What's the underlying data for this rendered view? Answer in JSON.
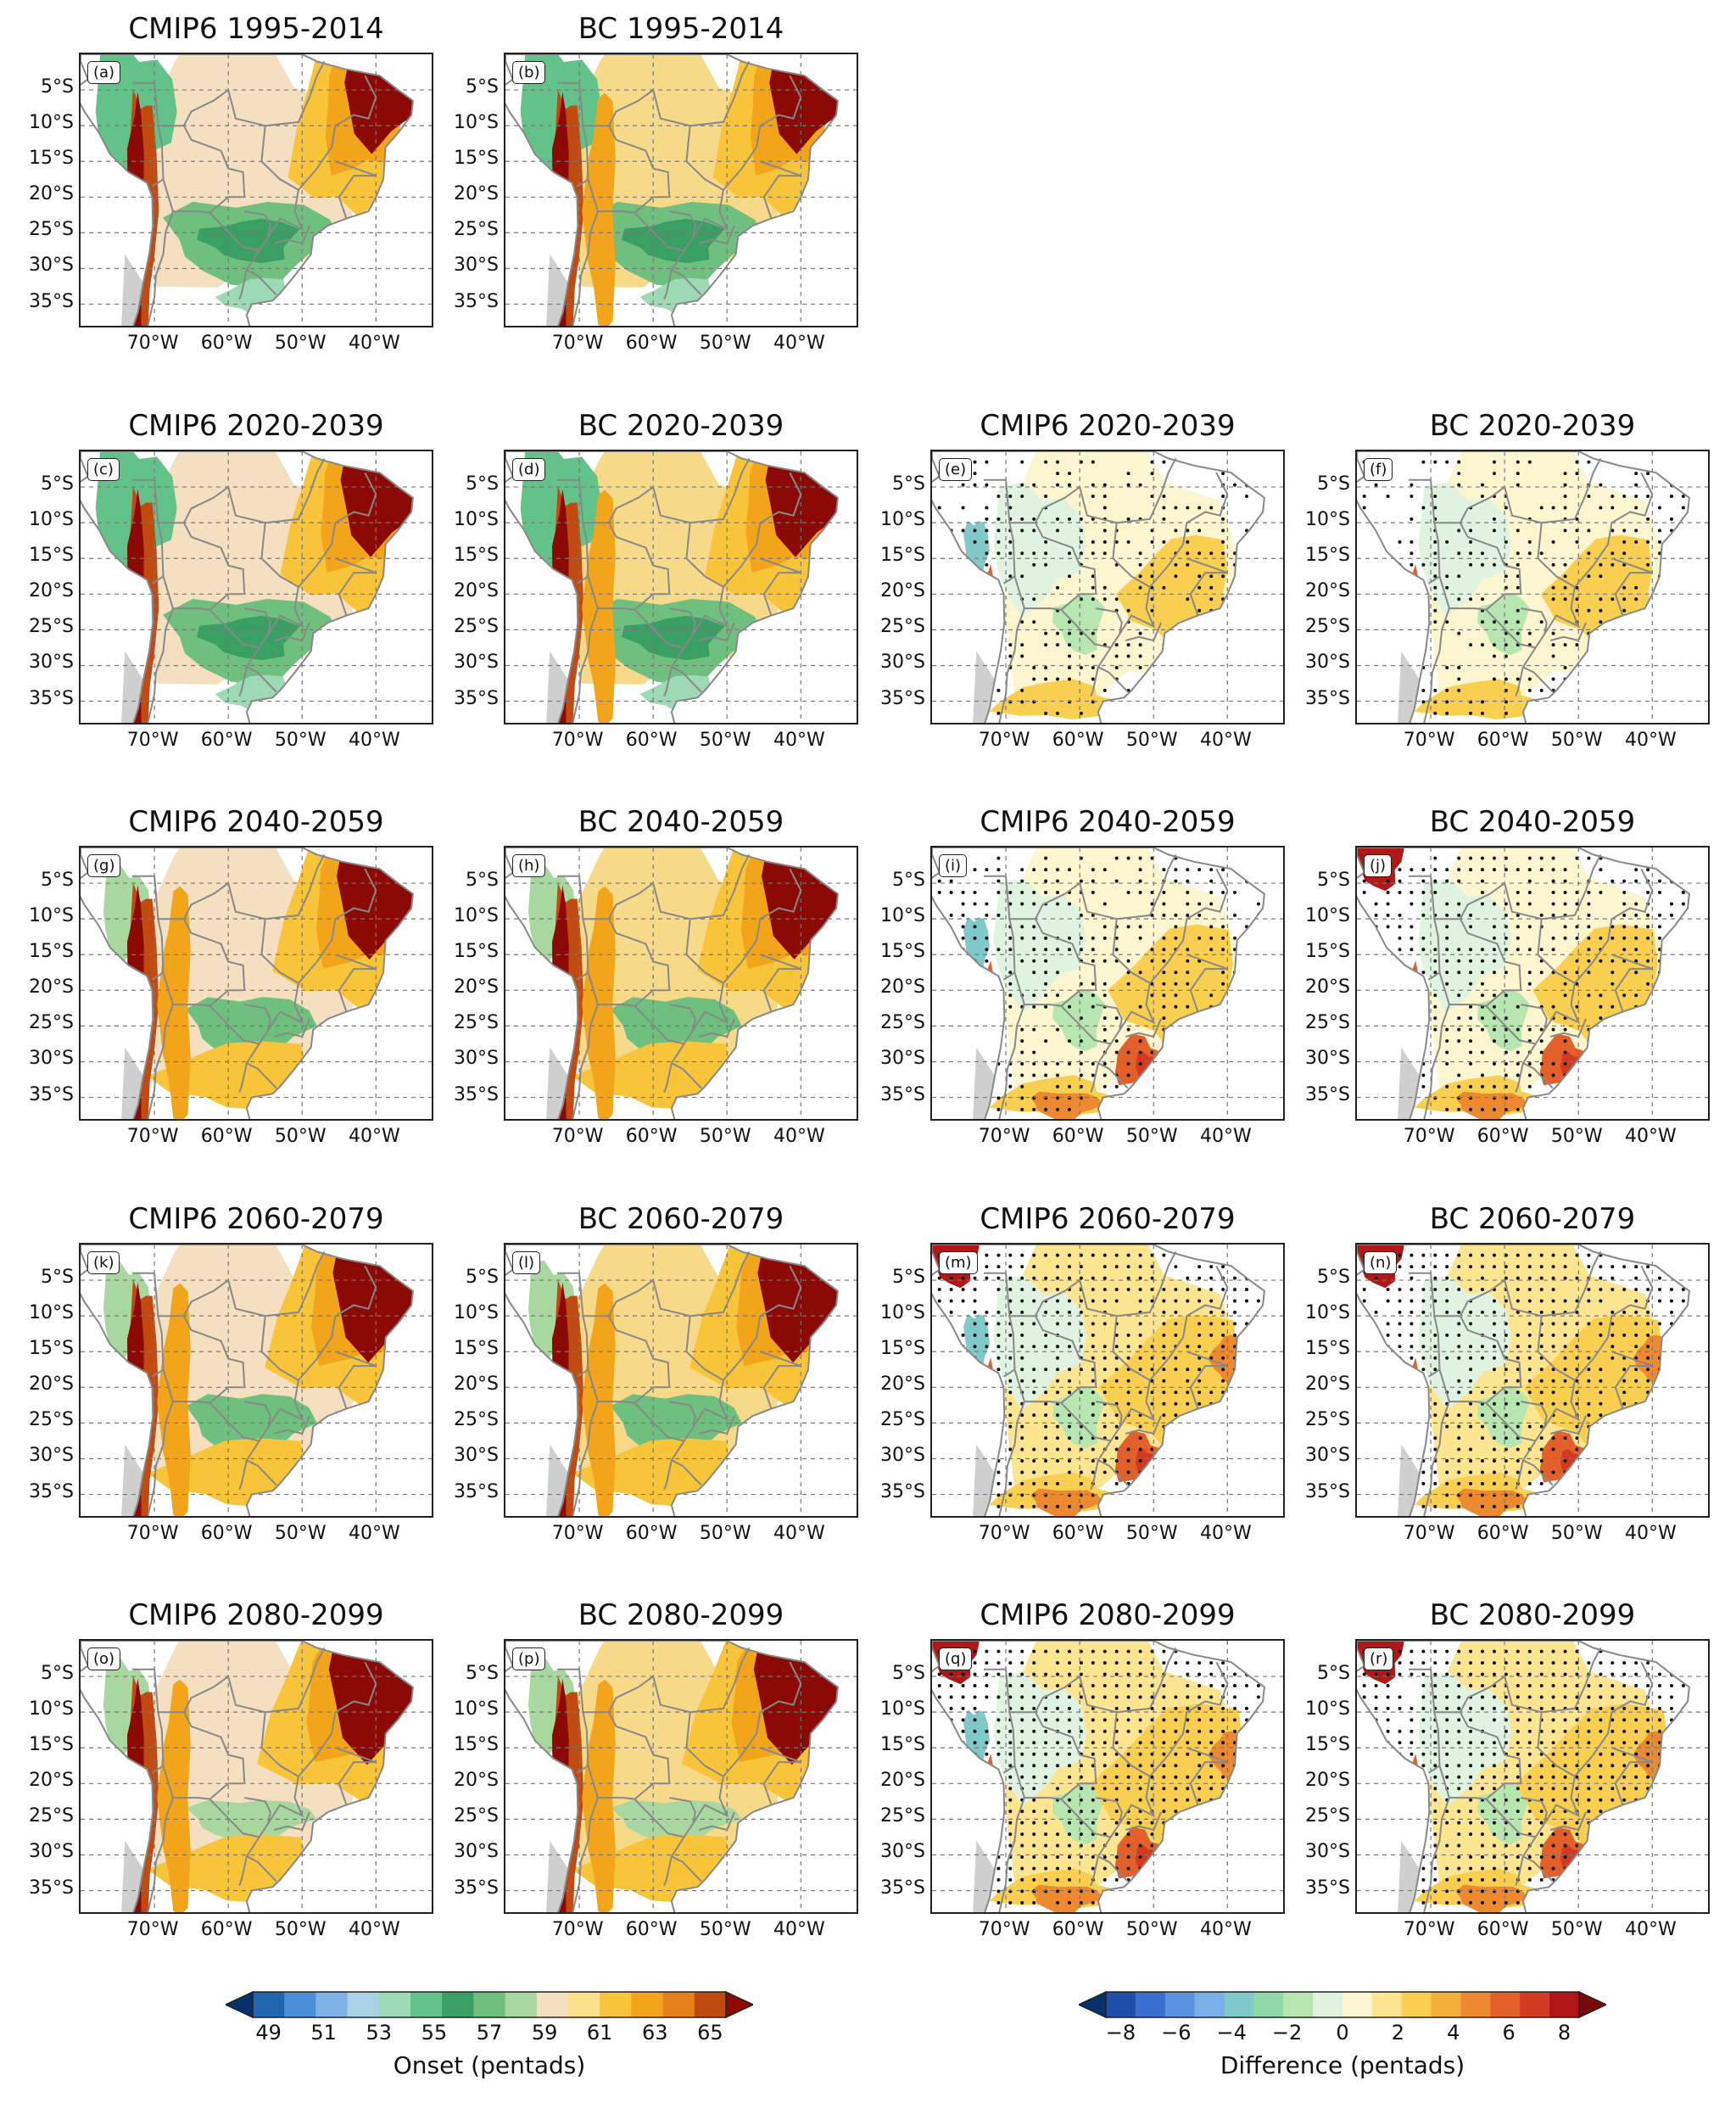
{
  "lat_labels": [
    "5°S",
    "10°S",
    "15°S",
    "20°S",
    "25°S",
    "30°S",
    "35°S"
  ],
  "lon_labels": [
    "70°W",
    "60°W",
    "50°W",
    "40°W"
  ],
  "panels": [
    {
      "id": "a",
      "letter": "(a)",
      "title": "CMIP6 1995-2014",
      "kind": "onset",
      "col": 0,
      "row": 0
    },
    {
      "id": "b",
      "letter": "(b)",
      "title": "BC 1995-2014",
      "kind": "onset",
      "col": 1,
      "row": 0
    },
    {
      "id": "c",
      "letter": "(c)",
      "title": "CMIP6 2020-2039",
      "kind": "onset",
      "col": 0,
      "row": 1
    },
    {
      "id": "d",
      "letter": "(d)",
      "title": "BC 2020-2039",
      "kind": "onset",
      "col": 1,
      "row": 1
    },
    {
      "id": "e",
      "letter": "(e)",
      "title": "CMIP6 2020-2039",
      "kind": "diff",
      "col": 2,
      "row": 1
    },
    {
      "id": "f",
      "letter": "(f)",
      "title": "BC 2020-2039",
      "kind": "diff",
      "col": 3,
      "row": 1
    },
    {
      "id": "g",
      "letter": "(g)",
      "title": "CMIP6 2040-2059",
      "kind": "onset",
      "col": 0,
      "row": 2
    },
    {
      "id": "h",
      "letter": "(h)",
      "title": "BC 2040-2059",
      "kind": "onset",
      "col": 1,
      "row": 2
    },
    {
      "id": "i",
      "letter": "(i)",
      "title": "CMIP6 2040-2059",
      "kind": "diff",
      "col": 2,
      "row": 2
    },
    {
      "id": "j",
      "letter": "(j)",
      "title": "BC 2040-2059",
      "kind": "diff",
      "col": 3,
      "row": 2
    },
    {
      "id": "k",
      "letter": "(k)",
      "title": "CMIP6 2060-2079",
      "kind": "onset",
      "col": 0,
      "row": 3
    },
    {
      "id": "l",
      "letter": "(l)",
      "title": "BC 2060-2079",
      "kind": "onset",
      "col": 1,
      "row": 3
    },
    {
      "id": "m",
      "letter": "(m)",
      "title": "CMIP6 2060-2079",
      "kind": "diff",
      "col": 2,
      "row": 3
    },
    {
      "id": "n",
      "letter": "(n)",
      "title": "BC 2060-2079",
      "kind": "diff",
      "col": 3,
      "row": 3
    },
    {
      "id": "o",
      "letter": "(o)",
      "title": "CMIP6 2080-2099",
      "kind": "onset",
      "col": 0,
      "row": 4
    },
    {
      "id": "p",
      "letter": "(p)",
      "title": "BC 2080-2099",
      "kind": "onset",
      "col": 1,
      "row": 4
    },
    {
      "id": "q",
      "letter": "(q)",
      "title": "CMIP6 2080-2099",
      "kind": "diff",
      "col": 2,
      "row": 4
    },
    {
      "id": "r",
      "letter": "(r)",
      "title": "BC 2080-2099",
      "kind": "diff",
      "col": 3,
      "row": 4
    }
  ],
  "colorbars": {
    "onset": {
      "label": "Onset (pentads)",
      "ticks": [
        "49",
        "51",
        "53",
        "55",
        "57",
        "59",
        "61",
        "63",
        "65"
      ],
      "colors": [
        "#08306b",
        "#2166ac",
        "#4a90d9",
        "#7fb3e8",
        "#a9d4e8",
        "#9dd9b5",
        "#63c28a",
        "#3a9f63",
        "#6fbf7f",
        "#a8d8a0",
        "#f4dfc0",
        "#fbe08a",
        "#f8c43a",
        "#f2a41a",
        "#e6801a",
        "#c04a10",
        "#8b0a05"
      ]
    },
    "diff": {
      "label": "Difference (pentads)",
      "ticks": [
        "−8",
        "−6",
        "−4",
        "−2",
        "0",
        "2",
        "4",
        "6",
        "8"
      ],
      "colors": [
        "#08306b",
        "#1f4fa8",
        "#3a6fd0",
        "#5a92e0",
        "#7ab0e8",
        "#7fc9c9",
        "#8fd9a8",
        "#b8e6b0",
        "#e0f3e0",
        "#fbf6d0",
        "#fbe590",
        "#f8cf50",
        "#f2b03a",
        "#ed8a30",
        "#e4602a",
        "#d23a22",
        "#b01818",
        "#7a0a08"
      ]
    }
  }
}
